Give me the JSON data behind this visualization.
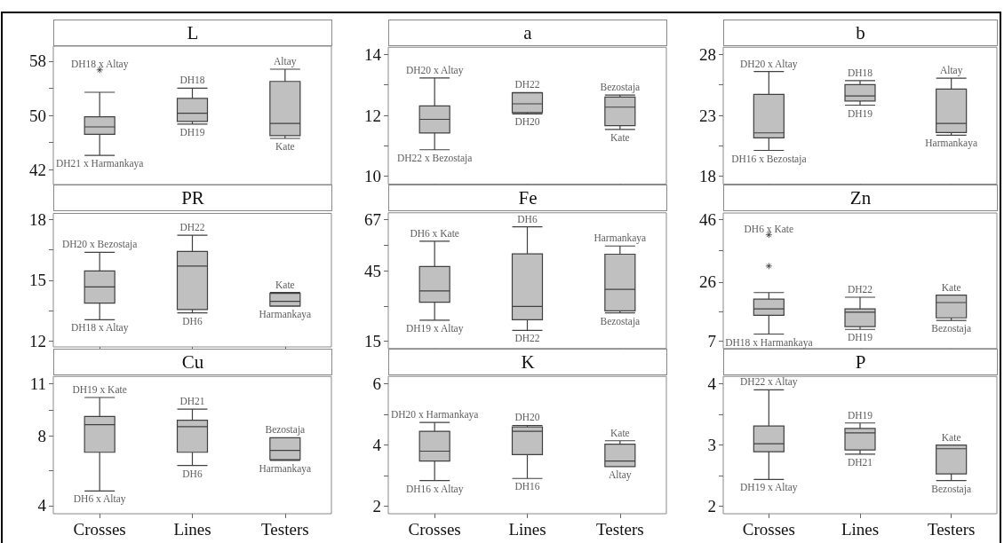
{
  "chart_data": [
    {
      "type": "box",
      "title": "L",
      "categories": [
        "Crosses",
        "Lines",
        "Testers"
      ],
      "ylim": [
        39.8,
        60.2
      ],
      "yticks": [
        42,
        {
          "value": 46,
          "label": null
        },
        50,
        {
          "value": 54,
          "label": null
        },
        58
      ],
      "tick_labels": "y",
      "grid": false,
      "series": [
        {
          "color": "#c0c0c0",
          "boxes": [
            {
              "low": 44.1,
              "q1": 47.2,
              "median": 48.3,
              "q3": 49.8,
              "high": 53.4,
              "outliers": [
                56.7
              ]
            },
            {
              "low": 48.7,
              "q1": 49.1,
              "median": 50.3,
              "q3": 52.5,
              "high": 54.0
            },
            {
              "low": 46.6,
              "q1": 47.0,
              "median": 48.8,
              "q3": 55.0,
              "high": 56.8
            }
          ]
        }
      ],
      "annotations": [
        "DH18 x Altay",
        {
          "text": "DH21 x Harmankaya",
          "x": "Crosses",
          "y": 44.1
        },
        {
          "text": "DH18",
          "x": "Lines",
          "y": 54.0
        },
        {
          "text": "DH19",
          "x": "Lines",
          "y": 48.7
        },
        {
          "text": "Altay",
          "x": "Testers",
          "y": 56.8
        },
        {
          "text": "Kate",
          "x": "Testers",
          "y": 46.6
        }
      ]
    },
    {
      "type": "box",
      "title": "a",
      "categories": [
        "Crosses",
        "Lines",
        "Testers"
      ],
      "ylim": [
        9.74,
        14.24
      ],
      "yticks": [
        10,
        {
          "value": 11,
          "label": null
        },
        12,
        {
          "value": 13,
          "label": null
        },
        14
      ],
      "tick_labels": "y",
      "grid": false,
      "series": [
        {
          "color": "#c0c0c0",
          "boxes": [
            {
              "low": 10.87,
              "q1": 11.42,
              "median": 11.87,
              "q3": 12.31,
              "high": 13.23
            },
            {
              "low": 12.05,
              "q1": 12.09,
              "median": 12.38,
              "q3": 12.74,
              "high": 12.75
            },
            {
              "low": 11.54,
              "q1": 11.66,
              "median": 12.27,
              "q3": 12.6,
              "high": 12.67
            }
          ]
        }
      ],
      "annotations": [
        {
          "text": "DH20 x Altay",
          "x": "Crosses",
          "y": 13.23
        },
        {
          "text": "DH22 x Bezostaja",
          "x": "Crosses",
          "y": 10.87
        },
        {
          "text": "DH22",
          "x": "Lines",
          "y": 12.75
        },
        {
          "text": "DH20",
          "x": "Lines",
          "y": 12.05
        },
        {
          "text": "Bezostaja",
          "x": "Testers",
          "y": 12.67
        },
        {
          "text": "Kate",
          "x": "Testers",
          "y": 11.54
        }
      ]
    },
    {
      "type": "box",
      "title": "b",
      "categories": [
        "Crosses",
        "Lines",
        "Testers"
      ],
      "ylim": [
        17.35,
        28.6
      ],
      "yticks": [
        18,
        {
          "value": 20.5,
          "label": null
        },
        23,
        {
          "value": 25.5,
          "label": null
        },
        28
      ],
      "tick_labels": "y",
      "grid": false,
      "series": [
        {
          "color": "#c0c0c0",
          "boxes": [
            {
              "low": 20.12,
              "q1": 21.15,
              "median": 21.56,
              "q3": 24.73,
              "high": 26.6
            },
            {
              "low": 23.84,
              "q1": 24.18,
              "median": 24.59,
              "q3": 25.52,
              "high": 25.86
            },
            {
              "low": 21.37,
              "q1": 21.59,
              "median": 22.33,
              "q3": 25.16,
              "high": 26.05
            }
          ]
        }
      ],
      "annotations": [
        {
          "text": "DH20 x Altay",
          "x": "Crosses",
          "y": 26.6
        },
        {
          "text": "DH16 x Bezostaja",
          "x": "Crosses",
          "y": 20.12
        },
        {
          "text": "DH18",
          "x": "Lines",
          "y": 25.86
        },
        {
          "text": "DH19",
          "x": "Lines",
          "y": 23.84
        },
        {
          "text": "Altay",
          "x": "Testers",
          "y": 26.05
        },
        {
          "text": "Harmankaya",
          "x": "Testers",
          "y": 21.37
        }
      ]
    },
    {
      "type": "box",
      "title": "PR",
      "categories": [
        "Crosses",
        "Lines",
        "Testers"
      ],
      "ylim": [
        11.72,
        18.3
      ],
      "yticks": [
        12,
        {
          "value": 13.5,
          "label": null
        },
        15,
        {
          "value": 16.5,
          "label": null
        },
        18
      ],
      "tick_labels": "y",
      "grid": false,
      "series": [
        {
          "color": "#c0c0c0",
          "boxes": [
            {
              "low": 13.06,
              "q1": 13.88,
              "median": 14.68,
              "q3": 15.46,
              "high": 16.38
            },
            {
              "low": 13.4,
              "q1": 13.56,
              "median": 15.7,
              "q3": 16.43,
              "high": 17.22
            },
            {
              "low": 13.72,
              "q1": 13.74,
              "median": 13.97,
              "q3": 14.36,
              "high": 14.4
            }
          ]
        }
      ],
      "annotations": [
        {
          "text": "DH20 x Bezostaja",
          "x": "Crosses",
          "y": 16.38
        },
        {
          "text": "DH18 x Altay",
          "x": "Crosses",
          "y": 13.06
        },
        {
          "text": "DH22",
          "x": "Lines",
          "y": 17.22
        },
        {
          "text": "DH6",
          "x": "Lines",
          "y": 13.4
        },
        {
          "text": "Kate",
          "x": "Testers",
          "y": 14.4
        },
        {
          "text": "Harmankaya",
          "x": "Testers",
          "y": 13.72
        }
      ]
    },
    {
      "type": "box",
      "title": "Fe",
      "categories": [
        "Crosses",
        "Lines",
        "Testers"
      ],
      "ylim": [
        11.9,
        69.9
      ],
      "yticks": [
        15,
        {
          "value": 30,
          "label": null
        },
        45,
        {
          "value": 56,
          "label": null
        },
        67
      ],
      "tick_labels": "y",
      "grid": false,
      "series": [
        {
          "color": "#c0c0c0",
          "boxes": [
            {
              "low": 24.0,
              "q1": 31.7,
              "median": 36.5,
              "q3": 46.9,
              "high": 57.7
            },
            {
              "low": 19.6,
              "q1": 24.2,
              "median": 29.9,
              "q3": 52.3,
              "high": 63.9
            },
            {
              "low": 27.1,
              "q1": 28.0,
              "median": 37.2,
              "q3": 52.2,
              "high": 55.7
            }
          ]
        }
      ],
      "annotations": [
        {
          "text": "DH6 x Kate",
          "x": "Crosses",
          "y": 57.7
        },
        {
          "text": "DH19 x Altay",
          "x": "Crosses",
          "y": 24.0
        },
        {
          "text": "DH6",
          "x": "Lines",
          "y": 63.9
        },
        {
          "text": "DH22",
          "x": "Lines",
          "y": 19.6
        },
        {
          "text": "Harmankaya",
          "x": "Testers",
          "y": 55.7
        },
        {
          "text": "Bezostaja",
          "x": "Testers",
          "y": 27.1
        }
      ]
    },
    {
      "type": "box",
      "title": "Zn",
      "categories": [
        "Crosses",
        "Lines",
        "Testers"
      ],
      "ylim": [
        4.67,
        48.1
      ],
      "yticks": [
        7,
        {
          "value": 16.5,
          "label": null
        },
        26,
        {
          "value": 36,
          "label": null
        },
        46
      ],
      "tick_labels": "y",
      "grid": false,
      "series": [
        {
          "color": "#c0c0c0",
          "boxes": [
            {
              "low": 9.3,
              "q1": 15.3,
              "median": 17.4,
              "q3": 20.5,
              "high": 22.6,
              "outliers": [
                41.1,
                31.1
              ]
            },
            {
              "low": 10.8,
              "q1": 11.7,
              "median": 16.3,
              "q3": 17.4,
              "high": 21.1
            },
            {
              "low": 13.7,
              "q1": 14.5,
              "median": 19.4,
              "q3": 21.8,
              "high": 21.8
            }
          ]
        }
      ],
      "annotations": [
        "DH6 x Kate",
        {
          "text": "DH18 x Harmankaya",
          "x": "Crosses",
          "y": 9.3
        },
        {
          "text": "DH22",
          "x": "Lines",
          "y": 21.1
        },
        {
          "text": "DH19",
          "x": "Lines",
          "y": 10.8
        },
        {
          "text": "Kate",
          "x": "Testers",
          "y": 21.8
        },
        {
          "text": "Bezostaja",
          "x": "Testers",
          "y": 13.7
        }
      ]
    },
    {
      "type": "box",
      "title": "Cu",
      "categories": [
        "Crosses",
        "Lines",
        "Testers"
      ],
      "ylim": [
        3.53,
        11.42
      ],
      "yticks": [
        4,
        {
          "value": 6,
          "label": null
        },
        8,
        {
          "value": 9.5,
          "label": null
        },
        11
      ],
      "grid": false,
      "series": [
        {
          "color": "#c0c0c0",
          "boxes": [
            {
              "low": 4.84,
              "q1": 7.06,
              "median": 8.65,
              "q3": 9.12,
              "high": 10.21
            },
            {
              "low": 6.3,
              "q1": 7.06,
              "median": 8.53,
              "q3": 8.9,
              "high": 9.54
            },
            {
              "low": 6.6,
              "q1": 6.64,
              "median": 7.17,
              "q3": 7.9,
              "high": 7.9
            }
          ]
        }
      ],
      "annotations": [
        {
          "text": "DH19 x Kate",
          "x": "Crosses",
          "y": 10.21
        },
        {
          "text": "DH6 x Altay",
          "x": "Crosses",
          "y": 4.84
        },
        {
          "text": "DH21",
          "x": "Lines",
          "y": 9.54
        },
        {
          "text": "DH6",
          "x": "Lines",
          "y": 6.3
        },
        {
          "text": "Bezostaja",
          "x": "Testers",
          "y": 7.9
        },
        {
          "text": "Harmankaya",
          "x": "Testers",
          "y": 6.6
        }
      ]
    },
    {
      "type": "box",
      "title": "K",
      "categories": [
        "Crosses",
        "Lines",
        "Testers"
      ],
      "ylim": [
        1.76,
        6.24
      ],
      "yticks": [
        2,
        {
          "value": 3,
          "label": null
        },
        4,
        {
          "value": 5,
          "label": null
        },
        6
      ],
      "grid": false,
      "series": [
        {
          "color": "#c0c0c0",
          "boxes": [
            {
              "low": 2.84,
              "q1": 3.48,
              "median": 3.8,
              "q3": 4.45,
              "high": 4.74
            },
            {
              "low": 2.91,
              "q1": 3.69,
              "median": 4.45,
              "q3": 4.59,
              "high": 4.64
            },
            {
              "low": 3.3,
              "q1": 3.3,
              "median": 3.48,
              "q3": 4.03,
              "high": 4.14
            }
          ]
        }
      ],
      "annotations": [
        {
          "text": "DH20 x Harmankaya",
          "x": "Crosses",
          "y": 4.74
        },
        {
          "text": "DH16 x Altay",
          "x": "Crosses",
          "y": 2.84
        },
        {
          "text": "DH20",
          "x": "Lines",
          "y": 4.64
        },
        {
          "text": "DH16",
          "x": "Lines",
          "y": 2.91
        },
        {
          "text": "Kate",
          "x": "Testers",
          "y": 4.14
        },
        {
          "text": "Altay",
          "x": "Testers",
          "y": 3.3
        }
      ]
    },
    {
      "type": "box",
      "title": "P",
      "categories": [
        "Crosses",
        "Lines",
        "Testers"
      ],
      "ylim": [
        1.88,
        4.12
      ],
      "yticks": [
        2,
        {
          "value": 2.5,
          "label": null
        },
        3,
        {
          "value": 3.5,
          "label": null
        },
        4
      ],
      "grid": false,
      "series": [
        {
          "color": "#c0c0c0",
          "boxes": [
            {
              "low": 2.44,
              "q1": 2.89,
              "median": 3.02,
              "q3": 3.31,
              "high": 3.9
            },
            {
              "low": 2.85,
              "q1": 2.92,
              "median": 3.2,
              "q3": 3.27,
              "high": 3.36
            },
            {
              "low": 2.42,
              "q1": 2.53,
              "median": 2.94,
              "q3": 3.0,
              "high": 3.0
            }
          ]
        }
      ],
      "annotations": [
        {
          "text": "DH22 x Altay",
          "x": "Crosses",
          "y": 3.9
        },
        {
          "text": "DH19 x Altay",
          "x": "Crosses",
          "y": 2.44
        },
        {
          "text": "DH19",
          "x": "Lines",
          "y": 3.36
        },
        {
          "text": "DH21",
          "x": "Lines",
          "y": 2.85
        },
        {
          "text": "Kate",
          "x": "Testers",
          "y": 3.0
        },
        {
          "text": "Bezostaja",
          "x": "Testers",
          "y": 2.42
        }
      ]
    }
  ]
}
